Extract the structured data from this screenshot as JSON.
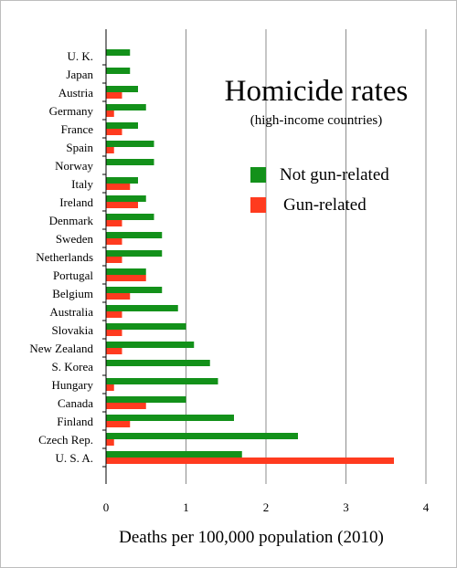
{
  "chart_data": {
    "type": "bar",
    "orientation": "horizontal",
    "title": "Homicide rates",
    "subtitle": "(high-income countries)",
    "xlabel": "Deaths per 100,000 population (2010)",
    "ylabel": "",
    "xlim": [
      0,
      4
    ],
    "xticks": [
      "0",
      "1",
      "2",
      "3",
      "4"
    ],
    "grid": true,
    "legend_placement": "top-right",
    "categories": [
      "U. K.",
      "Japan",
      "Austria",
      "Germany",
      "France",
      "Spain",
      "Norway",
      "Italy",
      "Ireland",
      "Denmark",
      "Sweden",
      "Netherlands",
      "Portugal",
      "Belgium",
      "Australia",
      "Slovakia",
      "New Zealand",
      "S. Korea",
      "Hungary",
      "Canada",
      "Finland",
      "Czech Rep.",
      "U. S. A."
    ],
    "series": [
      {
        "name": "Not gun-related",
        "color": "#13911a",
        "values": [
          0.3,
          0.3,
          0.4,
          0.5,
          0.4,
          0.6,
          0.6,
          0.4,
          0.5,
          0.6,
          0.7,
          0.7,
          0.5,
          0.7,
          0.9,
          1.0,
          1.1,
          1.3,
          1.4,
          1.0,
          1.6,
          2.4,
          1.7
        ]
      },
      {
        "name": "Gun-related",
        "color": "#ff3b1f",
        "values": [
          0.0,
          0.0,
          0.2,
          0.1,
          0.2,
          0.1,
          0.0,
          0.3,
          0.4,
          0.2,
          0.2,
          0.2,
          0.5,
          0.3,
          0.2,
          0.2,
          0.2,
          0.0,
          0.1,
          0.5,
          0.3,
          0.1,
          3.6
        ]
      }
    ]
  }
}
